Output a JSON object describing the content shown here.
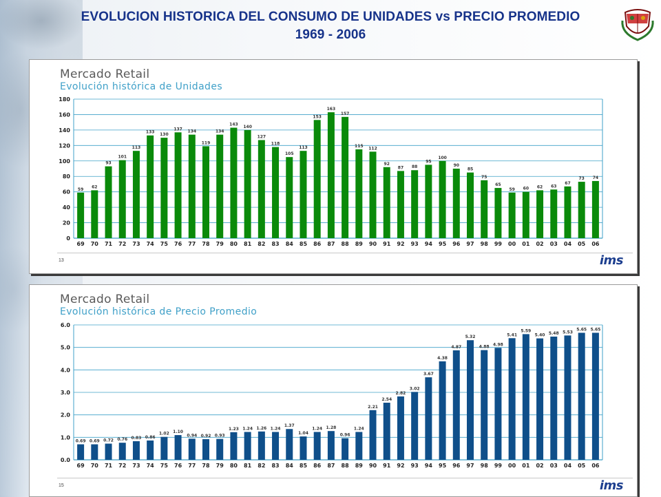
{
  "title": {
    "line1": "EVOLUCION HISTORICA DEL CONSUMO DE UNIDADES vs PRECIO PROMEDIO",
    "line2": "1969 - 2006"
  },
  "seal_icon": "peru-coat-of-arms-icon",
  "colors": {
    "title": "#17338a",
    "green_bar": "#0a8a0a",
    "blue_bar": "#0f4f8a",
    "subtitle": "#3fa0c8",
    "grid": "#3fa0c8"
  },
  "panels": [
    {
      "heading": "Mercado Retail",
      "subheading": "Evolución histórica de Unidades",
      "page": "13",
      "brand": "ims"
    },
    {
      "heading": "Mercado Retail",
      "subheading": "Evolución histórica de Precio Promedio",
      "page": "15",
      "brand": "ims"
    }
  ],
  "chart_data": [
    {
      "type": "bar",
      "title": "Evolución histórica de Unidades",
      "categories": [
        "69",
        "70",
        "71",
        "72",
        "73",
        "74",
        "75",
        "76",
        "77",
        "78",
        "79",
        "80",
        "81",
        "82",
        "83",
        "84",
        "85",
        "86",
        "87",
        "88",
        "89",
        "90",
        "91",
        "92",
        "93",
        "94",
        "95",
        "96",
        "97",
        "98",
        "99",
        "00",
        "01",
        "02",
        "03",
        "04",
        "05",
        "06"
      ],
      "values": [
        59,
        62,
        93,
        101,
        113,
        133,
        130,
        137,
        134,
        119,
        134,
        143,
        140,
        127,
        118,
        105,
        113,
        153,
        163,
        157,
        115,
        112,
        92,
        87,
        88,
        95,
        100,
        90,
        85,
        75,
        65,
        59,
        60,
        62,
        63,
        67,
        73,
        74
      ],
      "value_labels": [
        "59",
        "62",
        "93",
        "101",
        "113",
        "133",
        "130",
        "137",
        "134",
        "119",
        "134",
        "143",
        "140",
        "127",
        "118",
        "105",
        "113",
        "153",
        "163",
        "157",
        "115",
        "112",
        "92",
        "87",
        "88",
        "95",
        "100",
        "90",
        "85",
        "75",
        "65",
        "59",
        "60",
        "62",
        "63",
        "67",
        "73",
        "74"
      ],
      "ylim": [
        0,
        180
      ],
      "yticks": [
        "0",
        "20",
        "40",
        "60",
        "80",
        "100",
        "120",
        "140",
        "160",
        "180"
      ],
      "grid": true,
      "color": "#0a8a0a"
    },
    {
      "type": "bar",
      "title": "Evolución histórica de Precio Promedio",
      "categories": [
        "69",
        "70",
        "71",
        "72",
        "73",
        "74",
        "75",
        "76",
        "77",
        "78",
        "79",
        "80",
        "81",
        "82",
        "83",
        "84",
        "85",
        "86",
        "87",
        "88",
        "89",
        "90",
        "91",
        "92",
        "93",
        "94",
        "95",
        "96",
        "97",
        "98",
        "99",
        "00",
        "01",
        "02",
        "03",
        "04",
        "05",
        "06"
      ],
      "values": [
        0.69,
        0.69,
        0.72,
        0.76,
        0.83,
        0.86,
        1.02,
        1.1,
        0.94,
        0.92,
        0.93,
        1.23,
        1.24,
        1.26,
        1.24,
        1.37,
        1.04,
        1.24,
        1.28,
        0.96,
        1.24,
        2.21,
        2.54,
        2.82,
        3.02,
        3.67,
        4.38,
        4.87,
        5.32,
        4.88,
        4.98,
        5.41,
        5.59,
        5.4,
        5.48,
        5.53,
        5.65,
        5.65
      ],
      "value_labels": [
        "0.69",
        "0.69",
        "0.72",
        "0.76",
        "0.83",
        "0.86",
        "1.02",
        "1.10",
        "0.94",
        "0.92",
        "0.93",
        "1.23",
        "1.24",
        "1.26",
        "1.24",
        "1.37",
        "1.04",
        "1.24",
        "1.28",
        "0.96",
        "1.24",
        "2.21",
        "2.54",
        "2.82",
        "3.02",
        "3.67",
        "4.38",
        "4.87",
        "5.32",
        "4.88",
        "4.98",
        "5.41",
        "5.59",
        "5.40",
        "5.48",
        "5.53",
        "5.65",
        "5.65"
      ],
      "ylim": [
        0,
        6
      ],
      "yticks": [
        "0.0",
        "1.0",
        "2.0",
        "3.0",
        "4.0",
        "5.0",
        "6.0"
      ],
      "grid": true,
      "color": "#0f4f8a"
    }
  ]
}
